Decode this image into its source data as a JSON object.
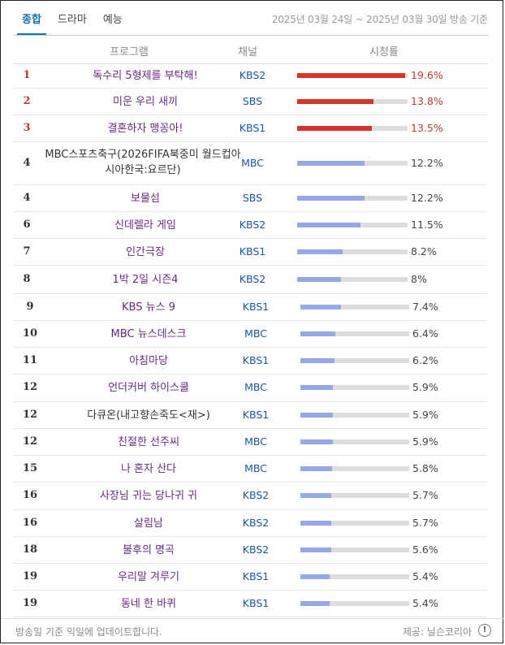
{
  "tabs": [
    {
      "label": "종합",
      "active": true
    },
    {
      "label": "드라마",
      "active": false
    },
    {
      "label": "예능",
      "active": false
    }
  ],
  "date_range": "2025년 03월 24일 ~ 2025년 03월 30일 방송 기준",
  "columns": {
    "program": "프로그램",
    "channel": "채널",
    "rating": "시청률"
  },
  "rows": [
    {
      "rank": "1",
      "program": "독수리 5형제를 부탁해!",
      "channel": "KBS2",
      "rating_text": "19.6%",
      "rating": 19.6
    },
    {
      "rank": "2",
      "program": "미운 우리 새끼",
      "channel": "SBS",
      "rating_text": "13.8%",
      "rating": 13.8
    },
    {
      "rank": "3",
      "program": "결혼하자 맹꽁아!",
      "channel": "KBS1",
      "rating_text": "13.5%",
      "rating": 13.5
    },
    {
      "rank": "4",
      "program": "MBC스포츠축구(2026FIFA북중미 월드컵아시아한국:요르단)",
      "channel": "MBC",
      "rating_text": "12.2%",
      "rating": 12.2
    },
    {
      "rank": "4",
      "program": "보물섬",
      "channel": "SBS",
      "rating_text": "12.2%",
      "rating": 12.2
    },
    {
      "rank": "6",
      "program": "신데렐라 게임",
      "channel": "KBS2",
      "rating_text": "11.5%",
      "rating": 11.5
    },
    {
      "rank": "7",
      "program": "인간극장",
      "channel": "KBS1",
      "rating_text": "8.2%",
      "rating": 8.2
    },
    {
      "rank": "8",
      "program": "1박 2일 시즌4",
      "channel": "KBS2",
      "rating_text": "8%",
      "rating": 8.0
    },
    {
      "rank": "9",
      "program": "KBS 뉴스 9",
      "channel": "KBS1",
      "rating_text": "7.4%",
      "rating": 7.4
    },
    {
      "rank": "10",
      "program": "MBC 뉴스데스크",
      "channel": "MBC",
      "rating_text": "6.4%",
      "rating": 6.4
    },
    {
      "rank": "11",
      "program": "아침마당",
      "channel": "KBS1",
      "rating_text": "6.2%",
      "rating": 6.2
    },
    {
      "rank": "12",
      "program": "언더커버 하이스쿨",
      "channel": "MBC",
      "rating_text": "5.9%",
      "rating": 5.9
    },
    {
      "rank": "12",
      "program": "다큐온(내고향손죽도<재>)",
      "channel": "KBS1",
      "rating_text": "5.9%",
      "rating": 5.9
    },
    {
      "rank": "12",
      "program": "친절한 선주씨",
      "channel": "MBC",
      "rating_text": "5.9%",
      "rating": 5.9
    },
    {
      "rank": "15",
      "program": "나 혼자 산다",
      "channel": "MBC",
      "rating_text": "5.8%",
      "rating": 5.8
    },
    {
      "rank": "16",
      "program": "사장님 귀는 당나귀 귀",
      "channel": "KBS2",
      "rating_text": "5.7%",
      "rating": 5.7
    },
    {
      "rank": "16",
      "program": "살림남",
      "channel": "KBS2",
      "rating_text": "5.7%",
      "rating": 5.7
    },
    {
      "rank": "18",
      "program": "불후의 명곡",
      "channel": "KBS2",
      "rating_text": "5.6%",
      "rating": 5.6
    },
    {
      "rank": "19",
      "program": "우리말 겨루기",
      "channel": "KBS1",
      "rating_text": "5.4%",
      "rating": 5.4
    },
    {
      "rank": "19",
      "program": "동네 한 바퀴",
      "channel": "KBS1",
      "rating_text": "5.4%",
      "rating": 5.4
    }
  ],
  "footer": {
    "note": "방송일 기준 익일에 업데이트합니다.",
    "provider": "제공: 닐슨코리아",
    "info_glyph": "!"
  },
  "colors": {
    "accent": "#1b6fb5",
    "top_rank": "#c0392b",
    "bar_top": "#d9342b",
    "bar_other": "#96a9e6",
    "program": "#6b2a86",
    "channel": "#1a56a8"
  },
  "icons": {
    "info": "info-icon"
  }
}
